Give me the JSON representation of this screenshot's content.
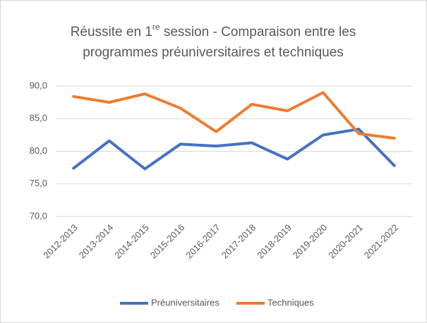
{
  "chart_data": {
    "type": "line",
    "title": [
      "Réussite en 1",
      "re",
      " session - Comparaison entre les",
      "programmes préuniversitaires et techniques"
    ],
    "categories": [
      "2012-2013",
      "2013-2014",
      "2014-2015",
      "2015-2016",
      "2016-2017",
      "2017-2018",
      "2018-2019",
      "2019-2020",
      "2020-2021",
      "2021-2022"
    ],
    "series": [
      {
        "name": "Préuniversitaires",
        "color": "#4472c4",
        "values": [
          77.4,
          81.6,
          77.3,
          81.1,
          80.8,
          81.3,
          78.8,
          82.5,
          83.4,
          77.8
        ]
      },
      {
        "name": "Techniques",
        "color": "#ed7d31",
        "values": [
          88.4,
          87.5,
          88.8,
          86.6,
          83.0,
          87.2,
          86.2,
          89.0,
          82.7,
          82.0
        ]
      }
    ],
    "ylim": [
      70,
      90
    ],
    "yticks": [
      {
        "value": 70,
        "label": "70,0"
      },
      {
        "value": 75,
        "label": "75,0"
      },
      {
        "value": 80,
        "label": "80,0"
      },
      {
        "value": 85,
        "label": "85,0"
      },
      {
        "value": 90,
        "label": "90,0"
      }
    ],
    "grid": true,
    "legend": "bottom"
  }
}
